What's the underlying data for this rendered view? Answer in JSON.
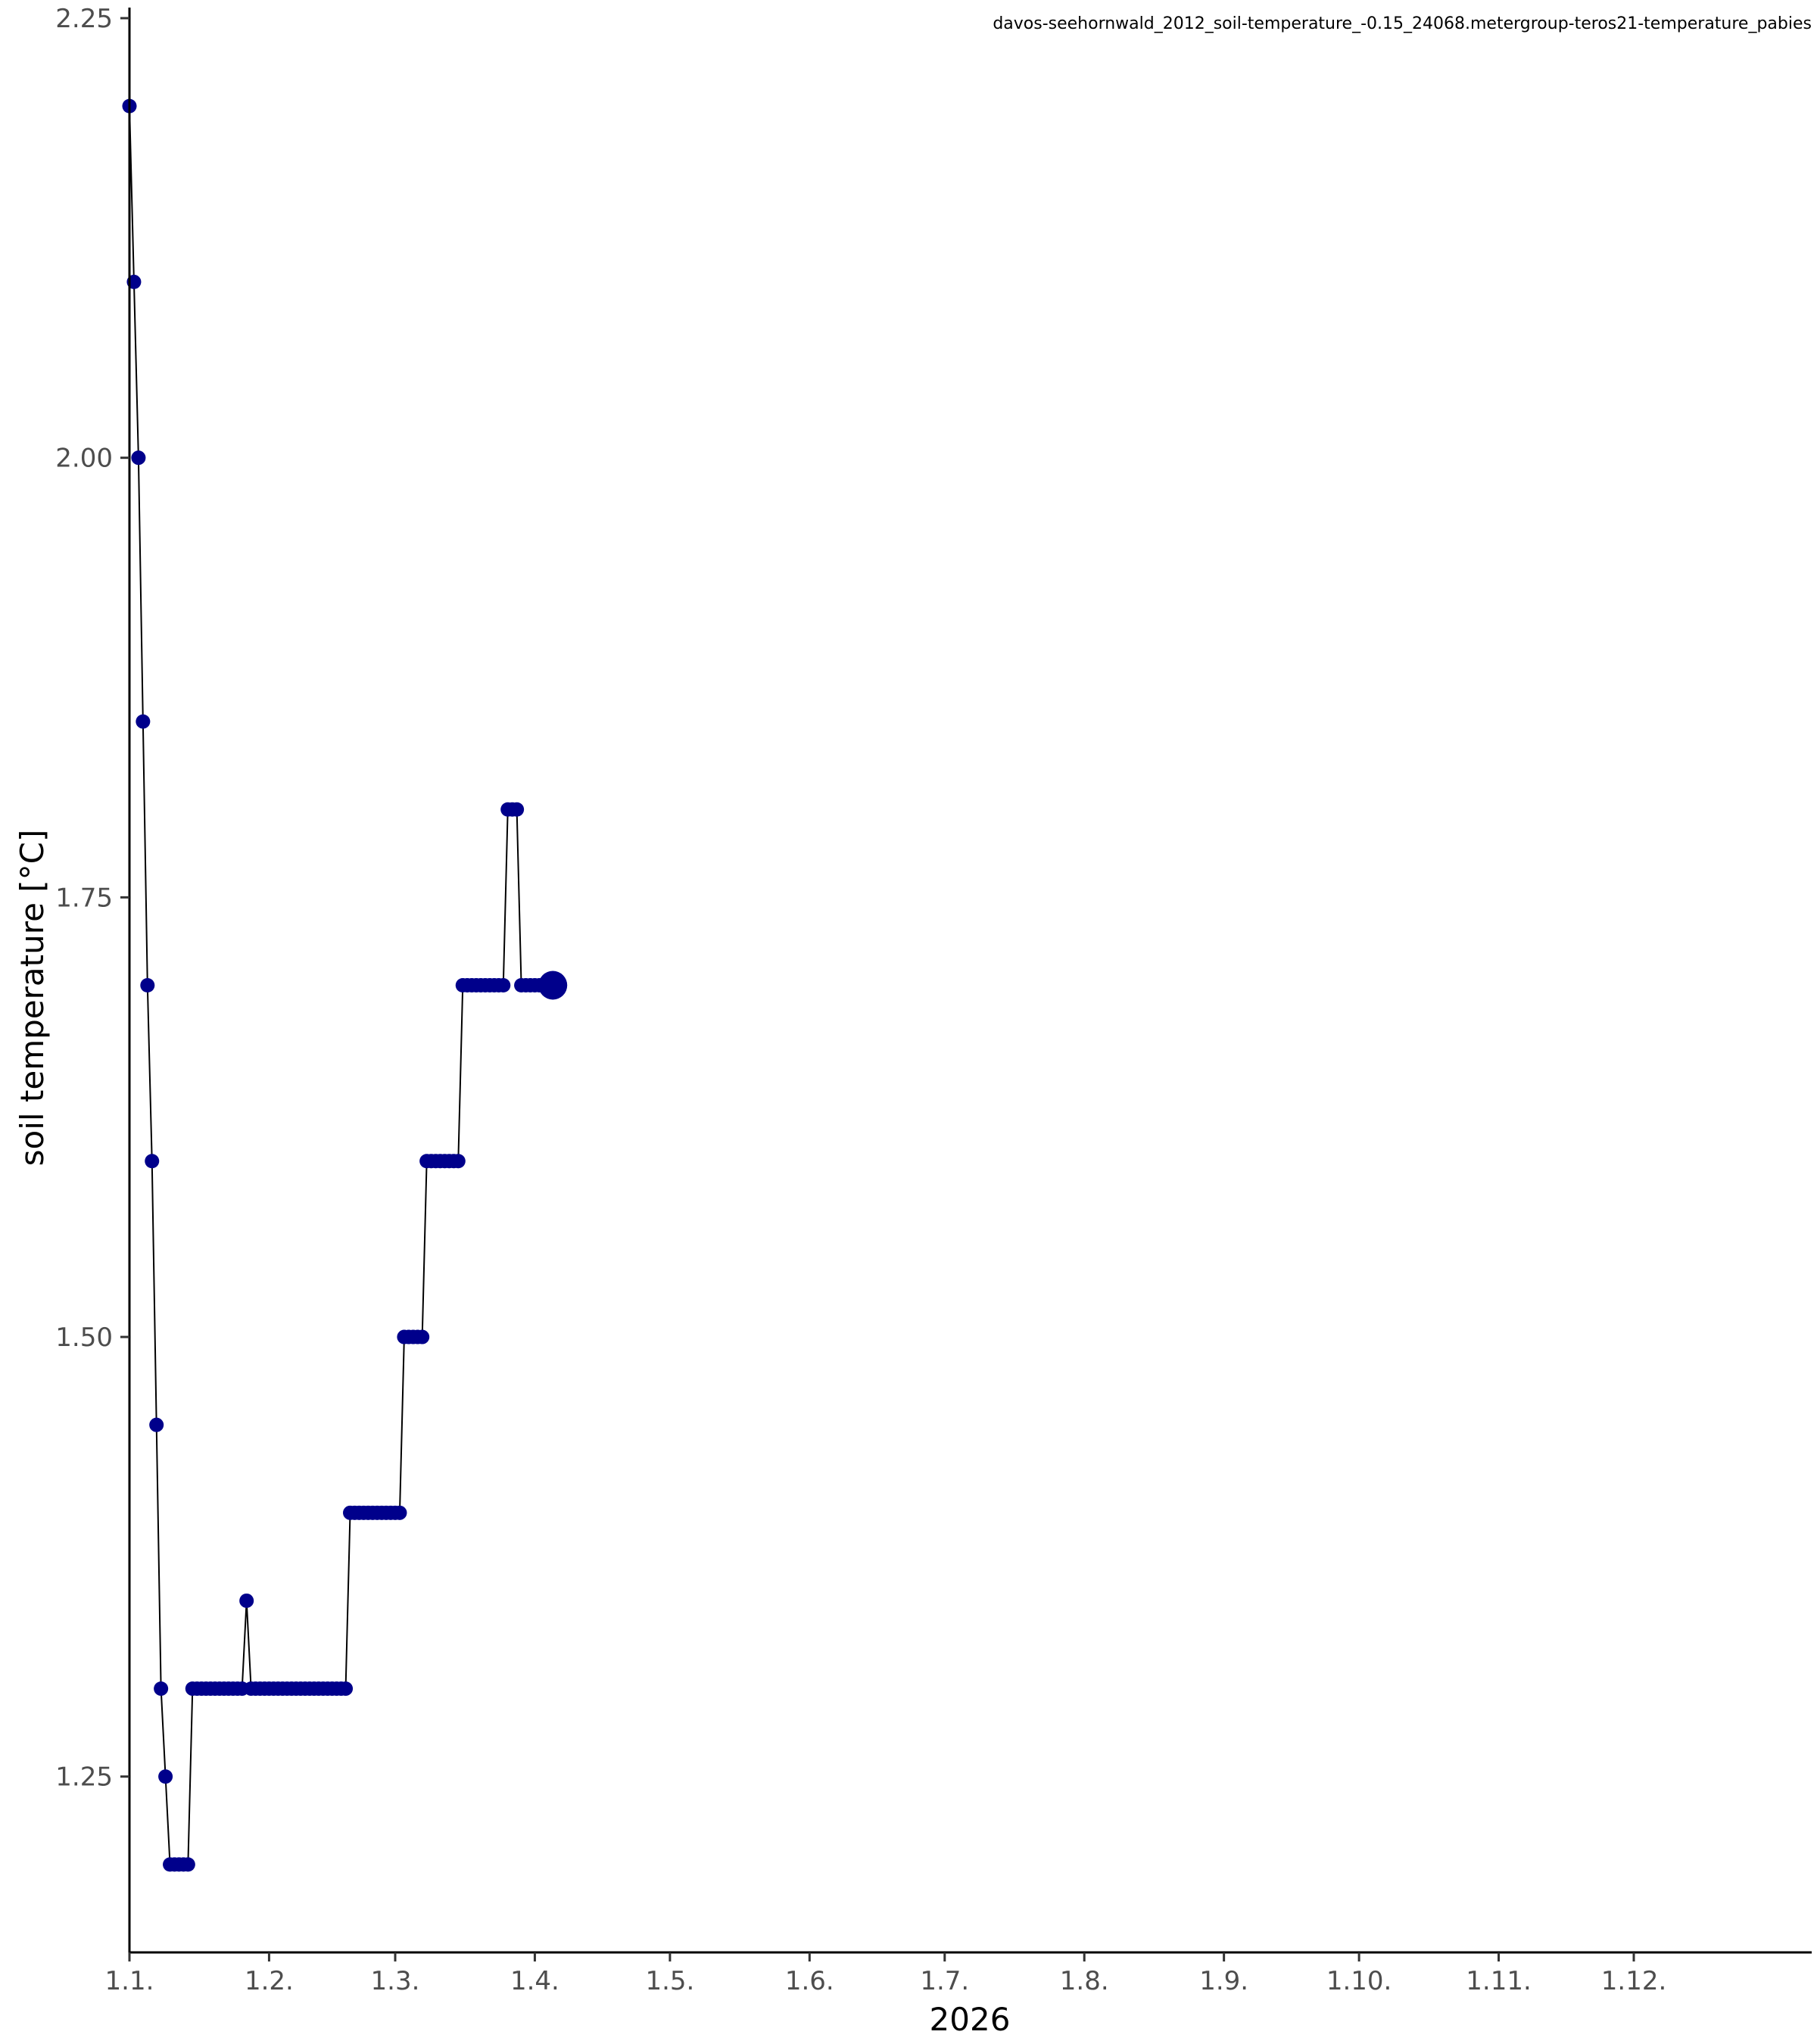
{
  "chart_data": {
    "type": "line",
    "title": "davos-seehornwald_2012_soil-temperature_-0.15_24068.metergroup-teros21-temperature_pabies",
    "xlabel": "2026",
    "ylabel": "soil temperature [°C]",
    "x_ticks": [
      "1.1.",
      "1.2.",
      "1.3.",
      "1.4.",
      "1.5.",
      "1.6.",
      "1.7.",
      "1.8.",
      "1.9.",
      "1.10.",
      "1.11.",
      "1.12."
    ],
    "x_tick_days": [
      0,
      31,
      59,
      90,
      120,
      151,
      181,
      212,
      243,
      273,
      304,
      334
    ],
    "xlim_days": [
      0,
      373.5
    ],
    "y_ticks": [
      "1.25",
      "1.50",
      "1.75",
      "2.00",
      "2.25"
    ],
    "y_tick_values": [
      1.25,
      1.5,
      1.75,
      2.0,
      2.25
    ],
    "ylim": [
      1.15,
      2.25
    ],
    "grid": false,
    "colors": {
      "points": "#00008b",
      "line": "#000000"
    },
    "series": [
      {
        "points": [
          [
            0,
            2.2
          ],
          [
            1,
            2.1
          ],
          [
            2,
            2.0
          ],
          [
            3,
            1.85
          ],
          [
            4,
            1.7
          ],
          [
            5,
            1.6
          ],
          [
            6,
            1.45
          ],
          [
            7,
            1.3
          ],
          [
            8,
            1.25
          ],
          [
            9,
            1.2
          ],
          [
            10,
            1.2
          ],
          [
            11,
            1.2
          ],
          [
            12,
            1.2
          ],
          [
            13,
            1.2
          ],
          [
            14,
            1.3
          ],
          [
            15,
            1.3
          ],
          [
            16,
            1.3
          ],
          [
            17,
            1.3
          ],
          [
            18,
            1.3
          ],
          [
            19,
            1.3
          ],
          [
            20,
            1.3
          ],
          [
            21,
            1.3
          ],
          [
            22,
            1.3
          ],
          [
            23,
            1.3
          ],
          [
            24,
            1.3
          ],
          [
            25,
            1.3
          ],
          [
            26,
            1.35
          ],
          [
            27,
            1.3
          ],
          [
            28,
            1.3
          ],
          [
            29,
            1.3
          ],
          [
            30,
            1.3
          ],
          [
            31,
            1.3
          ],
          [
            32,
            1.3
          ],
          [
            33,
            1.3
          ],
          [
            34,
            1.3
          ],
          [
            35,
            1.3
          ],
          [
            36,
            1.3
          ],
          [
            37,
            1.3
          ],
          [
            38,
            1.3
          ],
          [
            39,
            1.3
          ],
          [
            40,
            1.3
          ],
          [
            41,
            1.3
          ],
          [
            42,
            1.3
          ],
          [
            43,
            1.3
          ],
          [
            44,
            1.3
          ],
          [
            45,
            1.3
          ],
          [
            46,
            1.3
          ],
          [
            47,
            1.3
          ],
          [
            48,
            1.3
          ],
          [
            49,
            1.4
          ],
          [
            50,
            1.4
          ],
          [
            51,
            1.4
          ],
          [
            52,
            1.4
          ],
          [
            53,
            1.4
          ],
          [
            54,
            1.4
          ],
          [
            55,
            1.4
          ],
          [
            56,
            1.4
          ],
          [
            57,
            1.4
          ],
          [
            58,
            1.4
          ],
          [
            59,
            1.4
          ],
          [
            60,
            1.4
          ],
          [
            61,
            1.5
          ],
          [
            62,
            1.5
          ],
          [
            63,
            1.5
          ],
          [
            64,
            1.5
          ],
          [
            65,
            1.5
          ],
          [
            66,
            1.6
          ],
          [
            67,
            1.6
          ],
          [
            68,
            1.6
          ],
          [
            69,
            1.6
          ],
          [
            70,
            1.6
          ],
          [
            71,
            1.6
          ],
          [
            72,
            1.6
          ],
          [
            73,
            1.6
          ],
          [
            74,
            1.7
          ],
          [
            75,
            1.7
          ],
          [
            76,
            1.7
          ],
          [
            77,
            1.7
          ],
          [
            78,
            1.7
          ],
          [
            79,
            1.7
          ],
          [
            80,
            1.7
          ],
          [
            81,
            1.7
          ],
          [
            82,
            1.7
          ],
          [
            83,
            1.7
          ],
          [
            84,
            1.8
          ],
          [
            85,
            1.8
          ],
          [
            86,
            1.8
          ],
          [
            87,
            1.7
          ],
          [
            88,
            1.7
          ],
          [
            89,
            1.7
          ],
          [
            90,
            1.7
          ],
          [
            91,
            1.7
          ],
          [
            92,
            1.7
          ],
          [
            93,
            1.7
          ],
          [
            94,
            1.7
          ]
        ],
        "highlight_last": true
      }
    ]
  }
}
